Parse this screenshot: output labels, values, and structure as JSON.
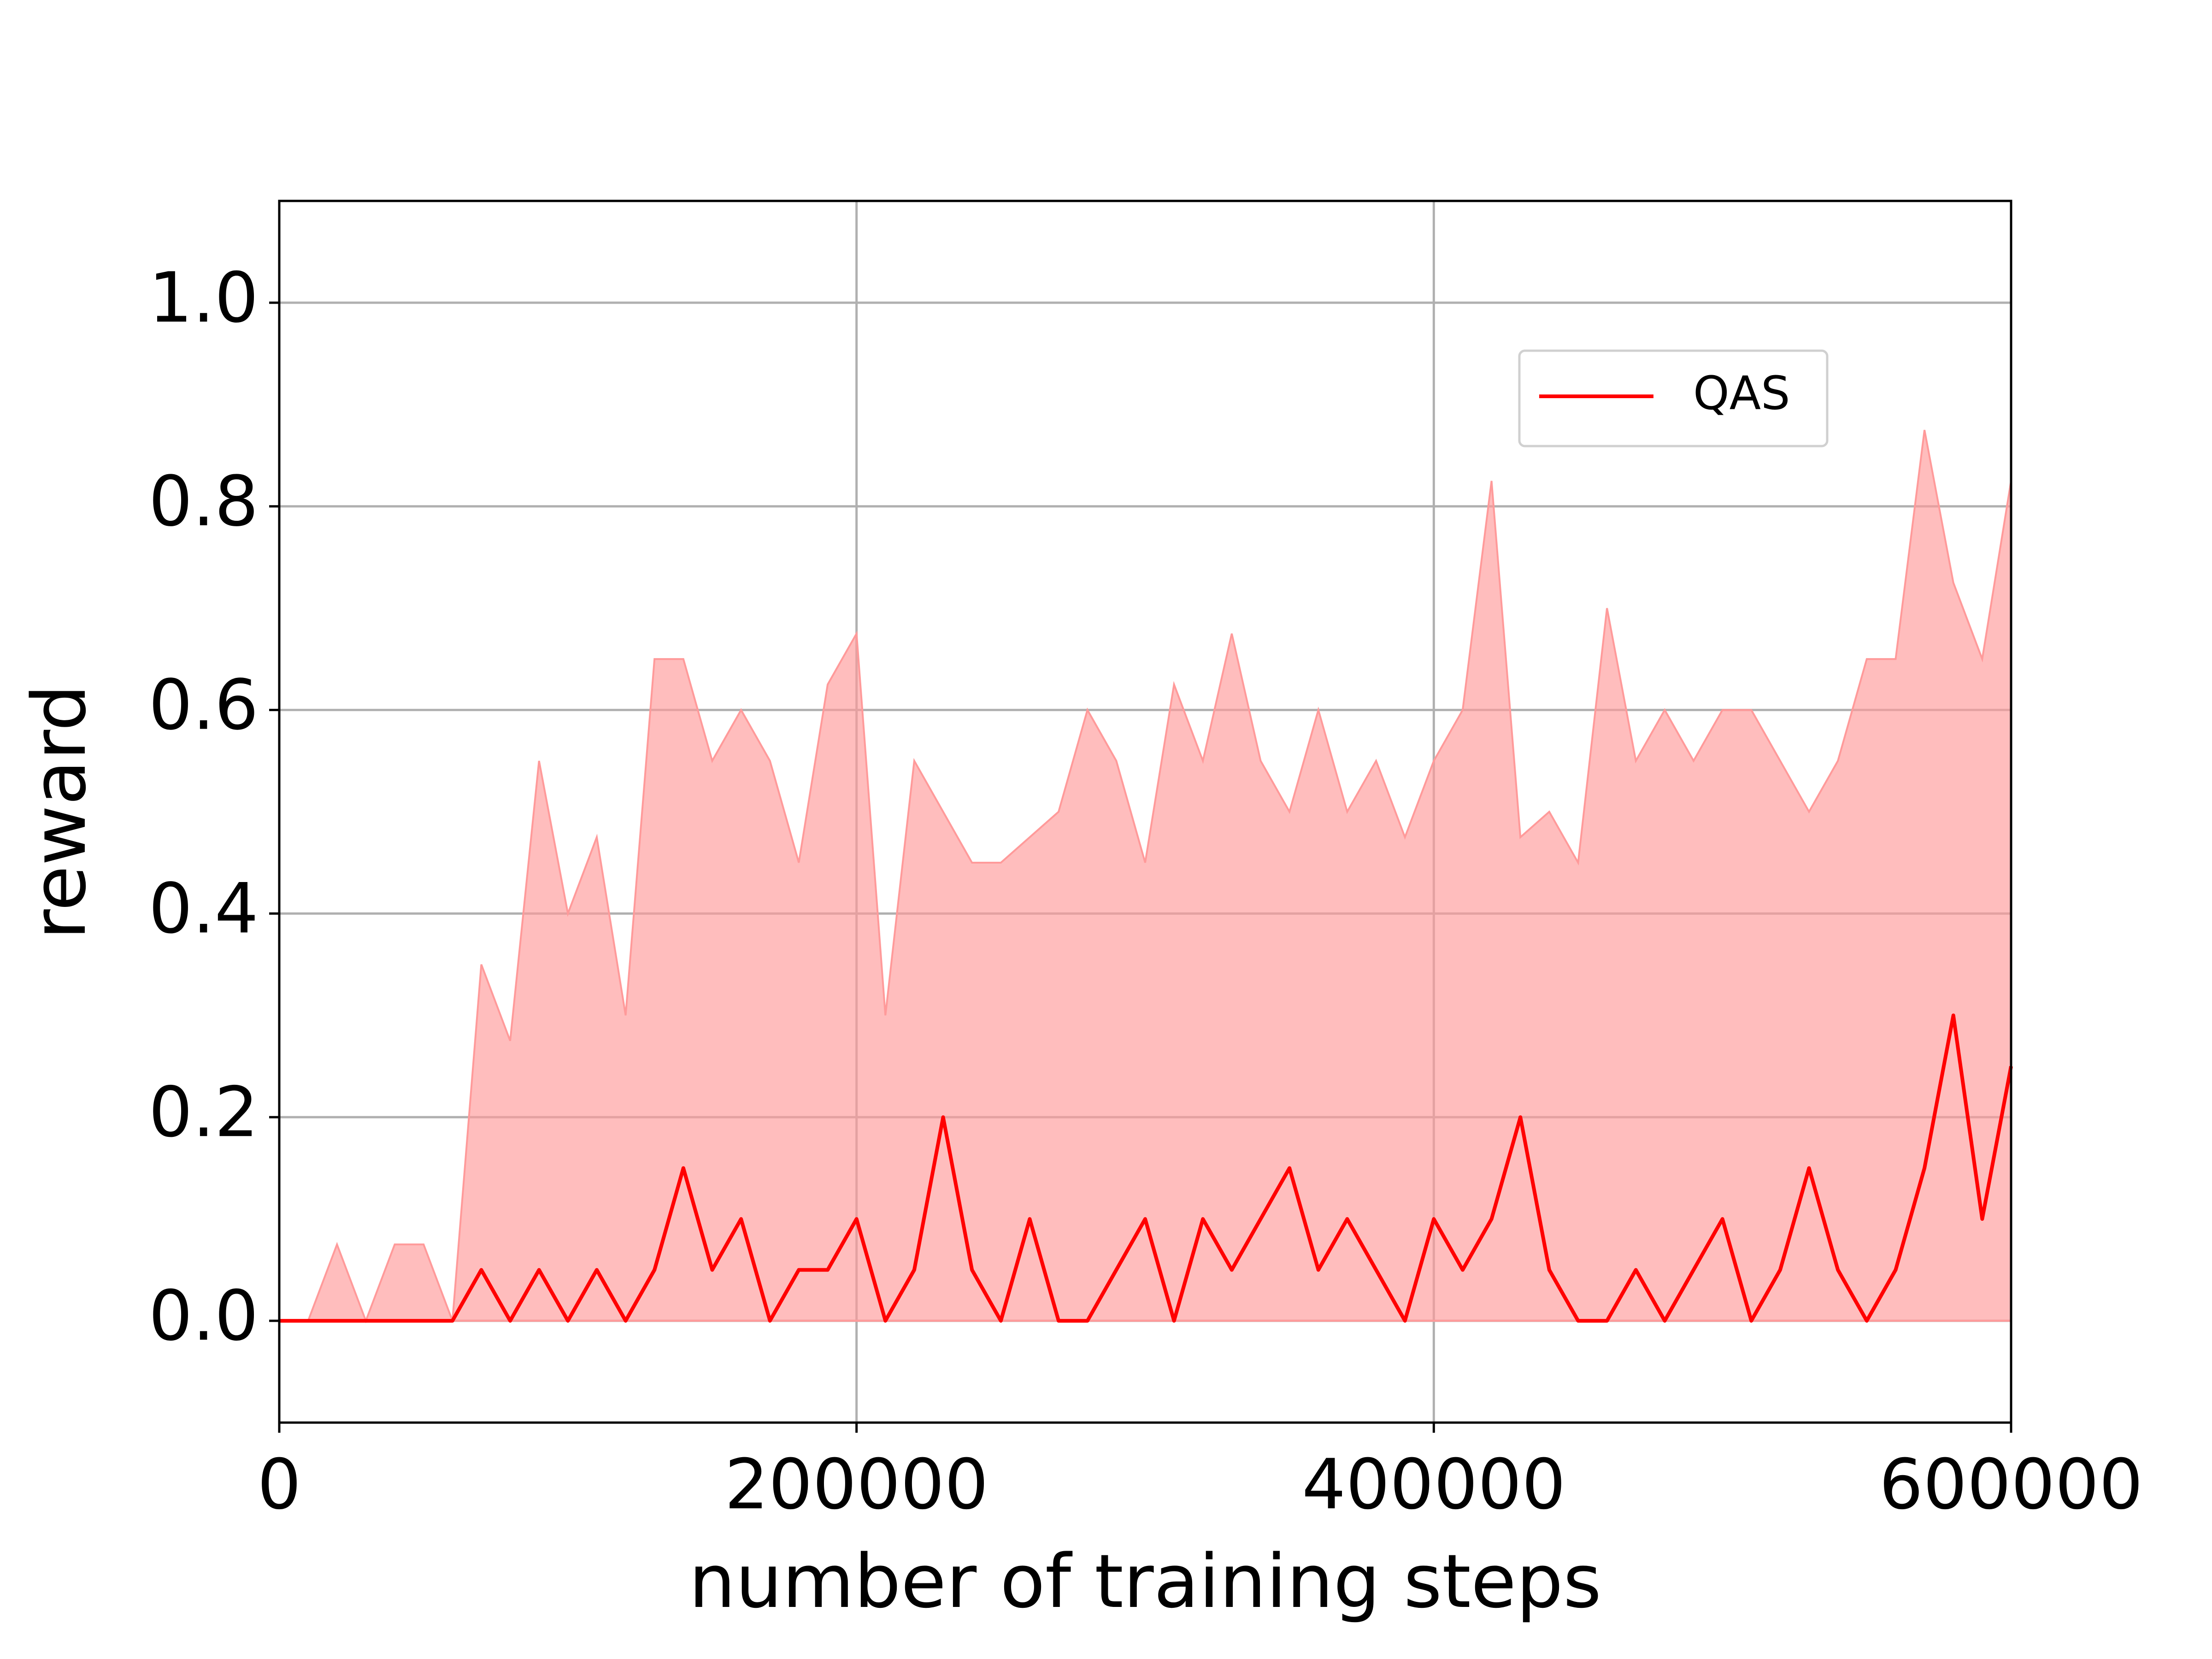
{
  "chart_data": {
    "type": "line",
    "xlabel": "number of training steps",
    "ylabel": "reward",
    "x": [
      0,
      10000,
      20000,
      30000,
      40000,
      50000,
      60000,
      70000,
      80000,
      90000,
      100000,
      110000,
      120000,
      130000,
      140000,
      150000,
      160000,
      170000,
      180000,
      190000,
      200000,
      210000,
      220000,
      230000,
      240000,
      250000,
      260000,
      270000,
      280000,
      290000,
      300000,
      310000,
      320000,
      330000,
      340000,
      350000,
      360000,
      370000,
      380000,
      390000,
      400000,
      410000,
      420000,
      430000,
      440000,
      450000,
      460000,
      470000,
      480000,
      490000,
      500000,
      510000,
      520000,
      530000,
      540000,
      550000,
      560000,
      570000,
      580000,
      590000,
      600000
    ],
    "series": [
      {
        "name": "QAS",
        "color": "#ff0000",
        "values": [
          0,
          0,
          0,
          0,
          0,
          0,
          0,
          0.05,
          0,
          0.05,
          0,
          0.05,
          0,
          0.05,
          0.15,
          0.05,
          0.1,
          0,
          0.05,
          0.05,
          0.1,
          0,
          0.05,
          0.2,
          0.05,
          0,
          0.1,
          0,
          0,
          0.05,
          0.1,
          0,
          0.1,
          0.05,
          0.1,
          0.15,
          0.05,
          0.1,
          0.05,
          0,
          0.1,
          0.05,
          0.1,
          0.2,
          0.05,
          0,
          0,
          0.05,
          0,
          0.05,
          0.1,
          0,
          0.05,
          0.15,
          0.05,
          0,
          0.05,
          0.15,
          0.3,
          0.1,
          0.25
        ]
      }
    ],
    "band": {
      "color": "#ff9a9a",
      "lower": [
        0,
        0,
        0,
        0,
        0,
        0,
        0,
        0,
        0,
        0,
        0,
        0,
        0,
        0,
        0,
        0,
        0,
        0,
        0,
        0,
        0,
        0,
        0,
        0,
        0,
        0,
        0,
        0,
        0,
        0,
        0,
        0,
        0,
        0,
        0,
        0,
        0,
        0,
        0,
        0,
        0,
        0,
        0,
        0,
        0,
        0,
        0,
        0,
        0,
        0,
        0,
        0,
        0,
        0,
        0,
        0,
        0,
        0,
        0,
        0,
        0
      ],
      "upper": [
        0,
        0,
        0.075,
        0,
        0.075,
        0.075,
        0,
        0.35,
        0.275,
        0.55,
        0.4,
        0.475,
        0.3,
        0.65,
        0.65,
        0.55,
        0.6,
        0.55,
        0.45,
        0.625,
        0.675,
        0.3,
        0.55,
        0.5,
        0.45,
        0.45,
        0.475,
        0.5,
        0.6,
        0.55,
        0.45,
        0.625,
        0.55,
        0.675,
        0.55,
        0.5,
        0.6,
        0.5,
        0.55,
        0.475,
        0.55,
        0.6,
        0.825,
        0.475,
        0.5,
        0.45,
        0.7,
        0.55,
        0.6,
        0.55,
        0.6,
        0.6,
        0.55,
        0.5,
        0.55,
        0.65,
        0.65,
        0.875,
        0.725,
        0.65,
        0.825
      ]
    },
    "xlim": [
      0,
      600000
    ],
    "xticks": [
      0,
      200000,
      400000,
      600000
    ],
    "ylim": [
      -0.1,
      1.1
    ],
    "yticks": [
      {
        "value": 0,
        "label": "0.0"
      },
      0.2,
      0.4,
      0.6,
      0.8,
      {
        "value": 1,
        "label": "1.0"
      }
    ],
    "grid": true,
    "legend": "upper right"
  }
}
